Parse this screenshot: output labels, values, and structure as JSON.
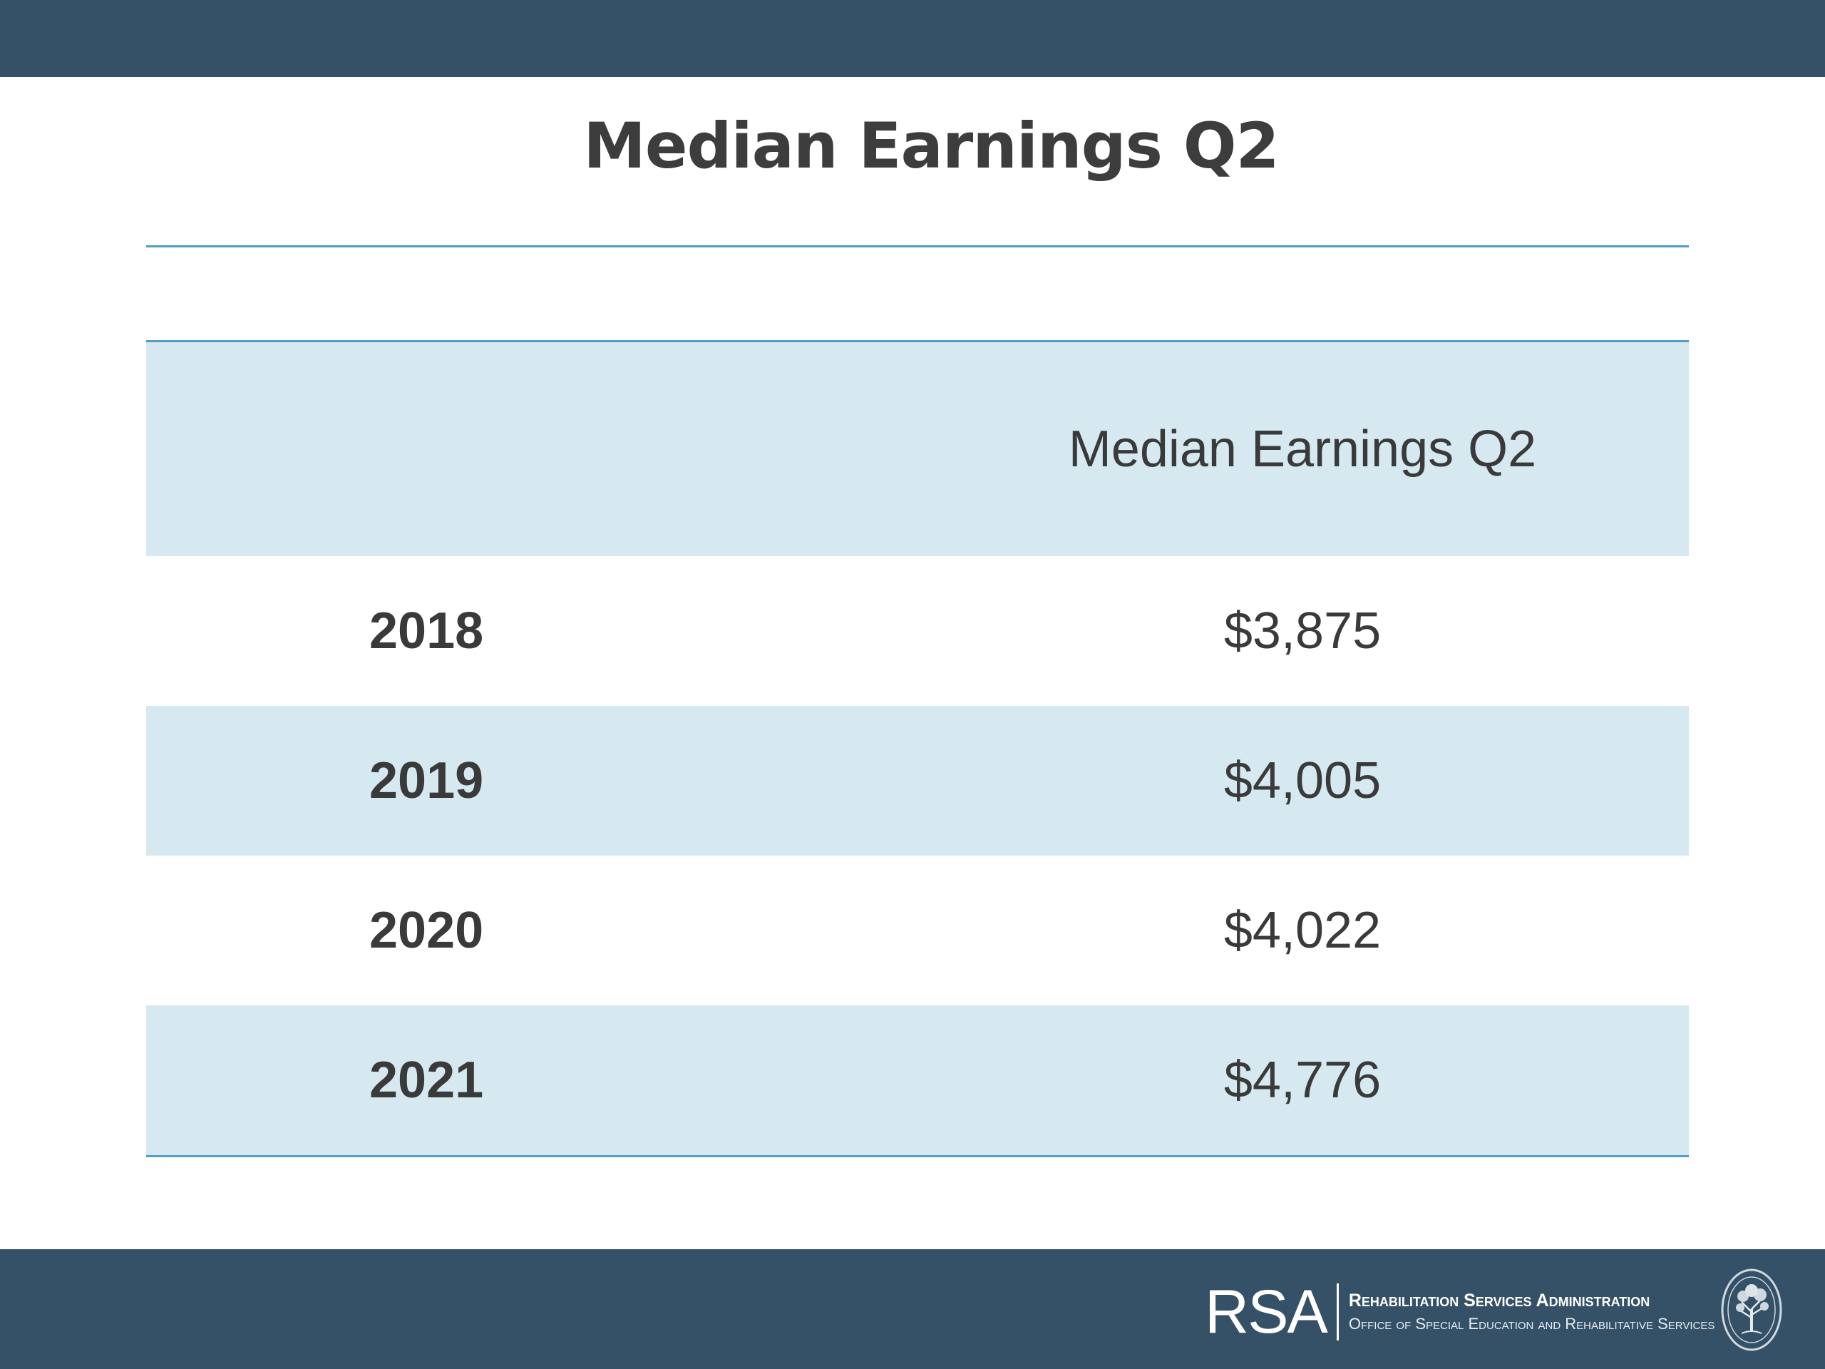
{
  "slide": {
    "title": "Median Earnings Q2"
  },
  "table": {
    "columns": [
      "",
      "Median Earnings Q2"
    ],
    "rows": [
      {
        "year": "2018",
        "value": "$3,875"
      },
      {
        "year": "2019",
        "value": "$4,005"
      },
      {
        "year": "2020",
        "value": "$4,022"
      },
      {
        "year": "2021",
        "value": "$4,776"
      }
    ]
  },
  "footer": {
    "logo_mark": "RSA",
    "org_name": "Rehabilitation Services Administration",
    "org_office": "Office of Special Education and Rehabilitative Services",
    "seal_icon": "department-seal-icon"
  },
  "colors": {
    "bar": "#355167",
    "rule": "#4f9ec4",
    "row_shade": "#d6e9f1",
    "text": "#3a3a3a"
  }
}
